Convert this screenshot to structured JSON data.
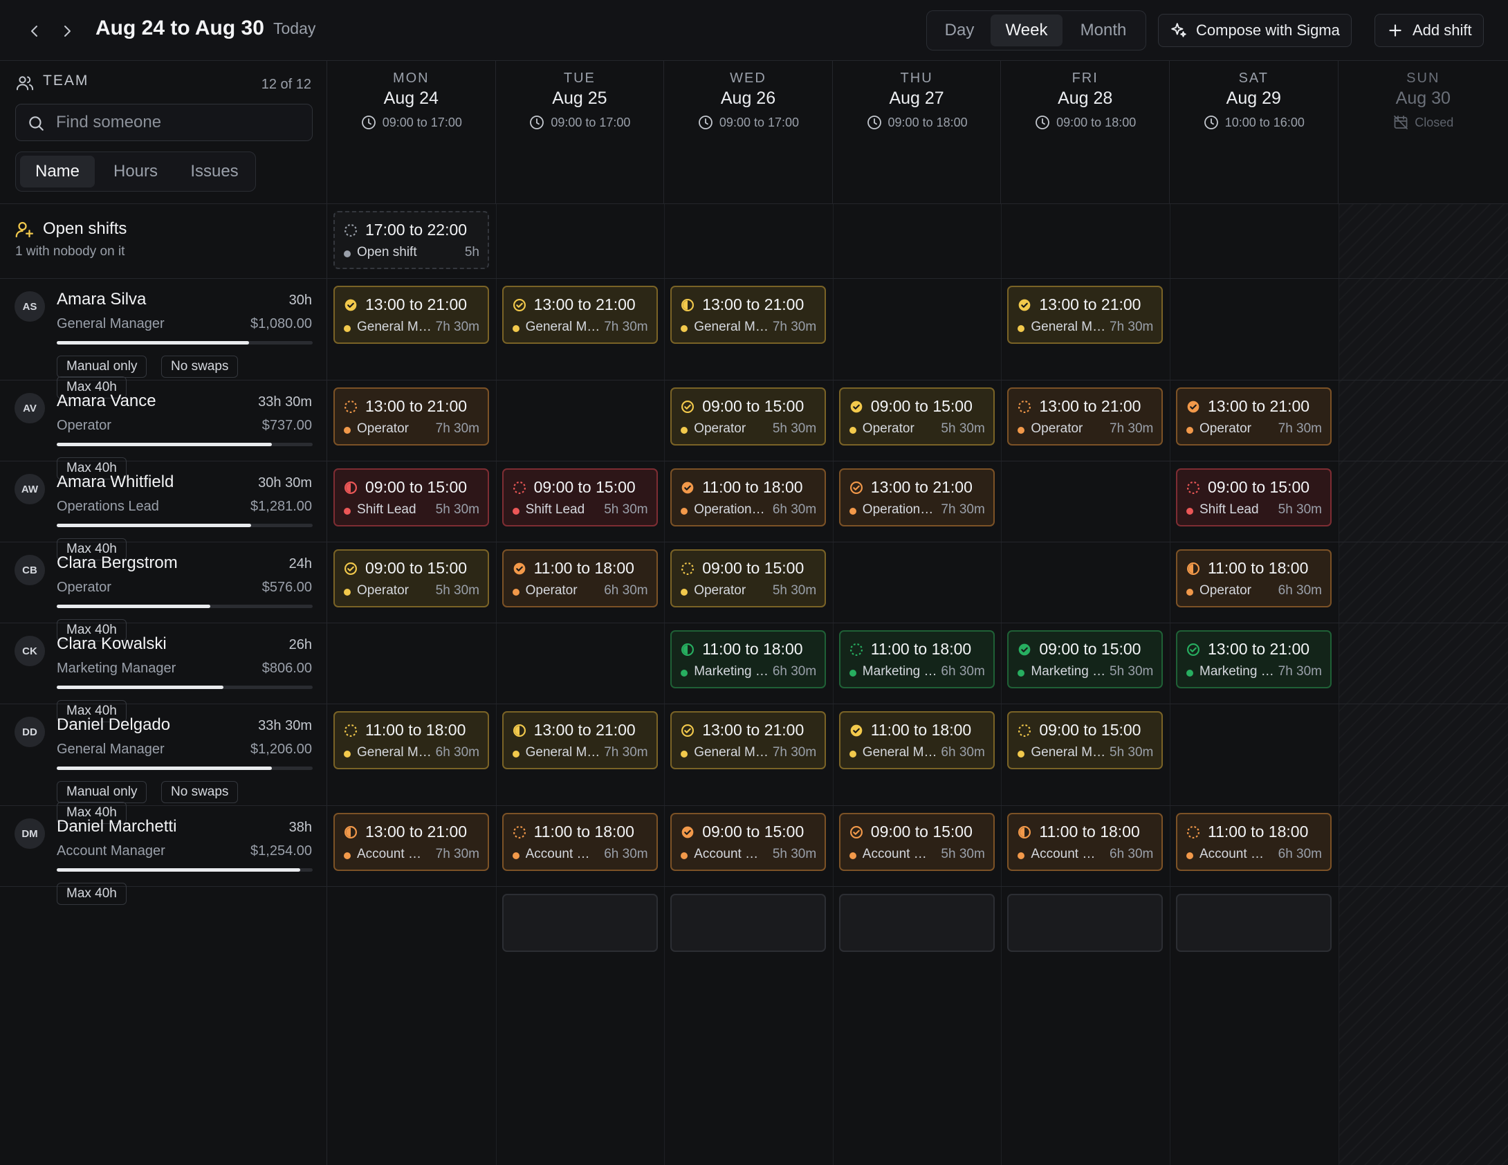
{
  "header": {
    "title": "Aug 24 to Aug 30",
    "today_label": "Today",
    "views": [
      "Day",
      "Week",
      "Month"
    ],
    "active_view": "Week",
    "compose_label": "Compose with Sigma",
    "add_label": "Add shift"
  },
  "sidebar": {
    "team_label": "TEAM",
    "count": "12 of 12",
    "search_placeholder": "Find someone",
    "sort_tabs": [
      "Name",
      "Hours",
      "Issues"
    ],
    "active_sort": "Name",
    "open_shifts": {
      "title": "Open shifts",
      "subtitle": "1 with nobody on it"
    }
  },
  "colors": {
    "yellow": "#f2c94c",
    "orange": "#f2994a",
    "red": "#eb5757",
    "green": "#27ae60",
    "gray": "#9aa0aa"
  },
  "days": [
    {
      "name": "MON",
      "date": "Aug 24",
      "hours": "09:00 to 17:00"
    },
    {
      "name": "TUE",
      "date": "Aug 25",
      "hours": "09:00 to 17:00"
    },
    {
      "name": "WED",
      "date": "Aug 26",
      "hours": "09:00 to 17:00"
    },
    {
      "name": "THU",
      "date": "Aug 27",
      "hours": "09:00 to 18:00"
    },
    {
      "name": "FRI",
      "date": "Aug 28",
      "hours": "09:00 to 18:00"
    },
    {
      "name": "SAT",
      "date": "Aug 29",
      "hours": "10:00 to 16:00"
    },
    {
      "name": "SUN",
      "date": "Aug 30",
      "hours": "Closed",
      "closed": true
    }
  ],
  "open_shift_cells": [
    {
      "day": 0,
      "time": "17:00 to 22:00",
      "role": "Open shift",
      "duration": "5h",
      "status": "open",
      "color": "gray"
    }
  ],
  "people": [
    {
      "initials": "AS",
      "name": "Amara Silva",
      "hours": "30h",
      "role": "General Manager",
      "cost": "$1,080.00",
      "load": 0.75,
      "tags": [
        "Manual only",
        "No swaps",
        "Max 40h"
      ],
      "shifts": [
        {
          "day": 0,
          "time": "13:00 to 21:00",
          "role": "General Manager",
          "duration": "7h 30m",
          "color": "yellow",
          "status": "confirmed"
        },
        {
          "day": 1,
          "time": "13:00 to 21:00",
          "role": "General Manager",
          "duration": "7h 30m",
          "color": "yellow",
          "status": "done"
        },
        {
          "day": 2,
          "time": "13:00 to 21:00",
          "role": "General Manager",
          "duration": "7h 30m",
          "color": "yellow",
          "status": "half"
        },
        {
          "day": 4,
          "time": "13:00 to 21:00",
          "role": "General Manager",
          "duration": "7h 30m",
          "color": "yellow",
          "status": "confirmed"
        }
      ]
    },
    {
      "initials": "AV",
      "name": "Amara Vance",
      "hours": "33h 30m",
      "role": "Operator",
      "cost": "$737.00",
      "load": 0.84,
      "tags": [
        "Max 40h"
      ],
      "shifts": [
        {
          "day": 0,
          "time": "13:00 to 21:00",
          "role": "Operator",
          "duration": "7h 30m",
          "color": "orange",
          "status": "pending"
        },
        {
          "day": 2,
          "time": "09:00 to 15:00",
          "role": "Operator",
          "duration": "5h 30m",
          "color": "yellow",
          "status": "done"
        },
        {
          "day": 3,
          "time": "09:00 to 15:00",
          "role": "Operator",
          "duration": "5h 30m",
          "color": "yellow",
          "status": "confirmed"
        },
        {
          "day": 4,
          "time": "13:00 to 21:00",
          "role": "Operator",
          "duration": "7h 30m",
          "color": "orange",
          "status": "pending"
        },
        {
          "day": 5,
          "time": "13:00 to 21:00",
          "role": "Operator",
          "duration": "7h 30m",
          "color": "orange",
          "status": "confirmed"
        }
      ]
    },
    {
      "initials": "AW",
      "name": "Amara Whitfield",
      "hours": "30h 30m",
      "role": "Operations Lead",
      "cost": "$1,281.00",
      "load": 0.76,
      "tags": [
        "Max 40h"
      ],
      "shifts": [
        {
          "day": 0,
          "time": "09:00 to 15:00",
          "role": "Shift Lead",
          "duration": "5h 30m",
          "color": "red",
          "status": "half"
        },
        {
          "day": 1,
          "time": "09:00 to 15:00",
          "role": "Shift Lead",
          "duration": "5h 30m",
          "color": "red",
          "status": "pending"
        },
        {
          "day": 2,
          "time": "11:00 to 18:00",
          "role": "Operations Lead",
          "duration": "6h 30m",
          "color": "orange",
          "status": "confirmed"
        },
        {
          "day": 3,
          "time": "13:00 to 21:00",
          "role": "Operations Lead",
          "duration": "7h 30m",
          "color": "orange",
          "status": "done"
        },
        {
          "day": 5,
          "time": "09:00 to 15:00",
          "role": "Shift Lead",
          "duration": "5h 30m",
          "color": "red",
          "status": "pending"
        }
      ]
    },
    {
      "initials": "CB",
      "name": "Clara Bergstrom",
      "hours": "24h",
      "role": "Operator",
      "cost": "$576.00",
      "load": 0.6,
      "tags": [
        "Max 40h"
      ],
      "shifts": [
        {
          "day": 0,
          "time": "09:00 to 15:00",
          "role": "Operator",
          "duration": "5h 30m",
          "color": "yellow",
          "status": "done"
        },
        {
          "day": 1,
          "time": "11:00 to 18:00",
          "role": "Operator",
          "duration": "6h 30m",
          "color": "orange",
          "status": "confirmed"
        },
        {
          "day": 2,
          "time": "09:00 to 15:00",
          "role": "Operator",
          "duration": "5h 30m",
          "color": "yellow",
          "status": "pending"
        },
        {
          "day": 5,
          "time": "11:00 to 18:00",
          "role": "Operator",
          "duration": "6h 30m",
          "color": "orange",
          "status": "half"
        }
      ]
    },
    {
      "initials": "CK",
      "name": "Clara Kowalski",
      "hours": "26h",
      "role": "Marketing Manager",
      "cost": "$806.00",
      "load": 0.65,
      "tags": [
        "Max 40h"
      ],
      "shifts": [
        {
          "day": 2,
          "time": "11:00 to 18:00",
          "role": "Marketing Manager",
          "duration": "6h 30m",
          "color": "green",
          "status": "half"
        },
        {
          "day": 3,
          "time": "11:00 to 18:00",
          "role": "Marketing Manager",
          "duration": "6h 30m",
          "color": "green",
          "status": "pending"
        },
        {
          "day": 4,
          "time": "09:00 to 15:00",
          "role": "Marketing Manager",
          "duration": "5h 30m",
          "color": "green",
          "status": "confirmed"
        },
        {
          "day": 5,
          "time": "13:00 to 21:00",
          "role": "Marketing Manager",
          "duration": "7h 30m",
          "color": "green",
          "status": "done"
        }
      ]
    },
    {
      "initials": "DD",
      "name": "Daniel Delgado",
      "hours": "33h 30m",
      "role": "General Manager",
      "cost": "$1,206.00",
      "load": 0.84,
      "tags": [
        "Manual only",
        "No swaps",
        "Max 40h"
      ],
      "shifts": [
        {
          "day": 0,
          "time": "11:00 to 18:00",
          "role": "General Manager",
          "duration": "6h 30m",
          "color": "yellow",
          "status": "pending"
        },
        {
          "day": 1,
          "time": "13:00 to 21:00",
          "role": "General Manager",
          "duration": "7h 30m",
          "color": "yellow",
          "status": "half"
        },
        {
          "day": 2,
          "time": "13:00 to 21:00",
          "role": "General Manager",
          "duration": "7h 30m",
          "color": "yellow",
          "status": "done"
        },
        {
          "day": 3,
          "time": "11:00 to 18:00",
          "role": "General Manager",
          "duration": "6h 30m",
          "color": "yellow",
          "status": "confirmed"
        },
        {
          "day": 4,
          "time": "09:00 to 15:00",
          "role": "General Manager",
          "duration": "5h 30m",
          "color": "yellow",
          "status": "pending"
        }
      ]
    },
    {
      "initials": "DM",
      "name": "Daniel Marchetti",
      "hours": "38h",
      "role": "Account Manager",
      "cost": "$1,254.00",
      "load": 0.95,
      "tags": [
        "Max 40h"
      ],
      "shifts": [
        {
          "day": 0,
          "time": "13:00 to 21:00",
          "role": "Account Manager",
          "duration": "7h 30m",
          "color": "orange",
          "status": "half"
        },
        {
          "day": 1,
          "time": "11:00 to 18:00",
          "role": "Account Manager",
          "duration": "6h 30m",
          "color": "orange",
          "status": "pending"
        },
        {
          "day": 2,
          "time": "09:00 to 15:00",
          "role": "Account Manager",
          "duration": "5h 30m",
          "color": "orange",
          "status": "confirmed"
        },
        {
          "day": 3,
          "time": "09:00 to 15:00",
          "role": "Account Manager",
          "duration": "5h 30m",
          "color": "orange",
          "status": "done"
        },
        {
          "day": 4,
          "time": "11:00 to 18:00",
          "role": "Account Manager",
          "duration": "6h 30m",
          "color": "orange",
          "status": "half"
        },
        {
          "day": 5,
          "time": "11:00 to 18:00",
          "role": "Account Manager",
          "duration": "6h 30m",
          "color": "orange",
          "status": "pending"
        }
      ]
    }
  ]
}
